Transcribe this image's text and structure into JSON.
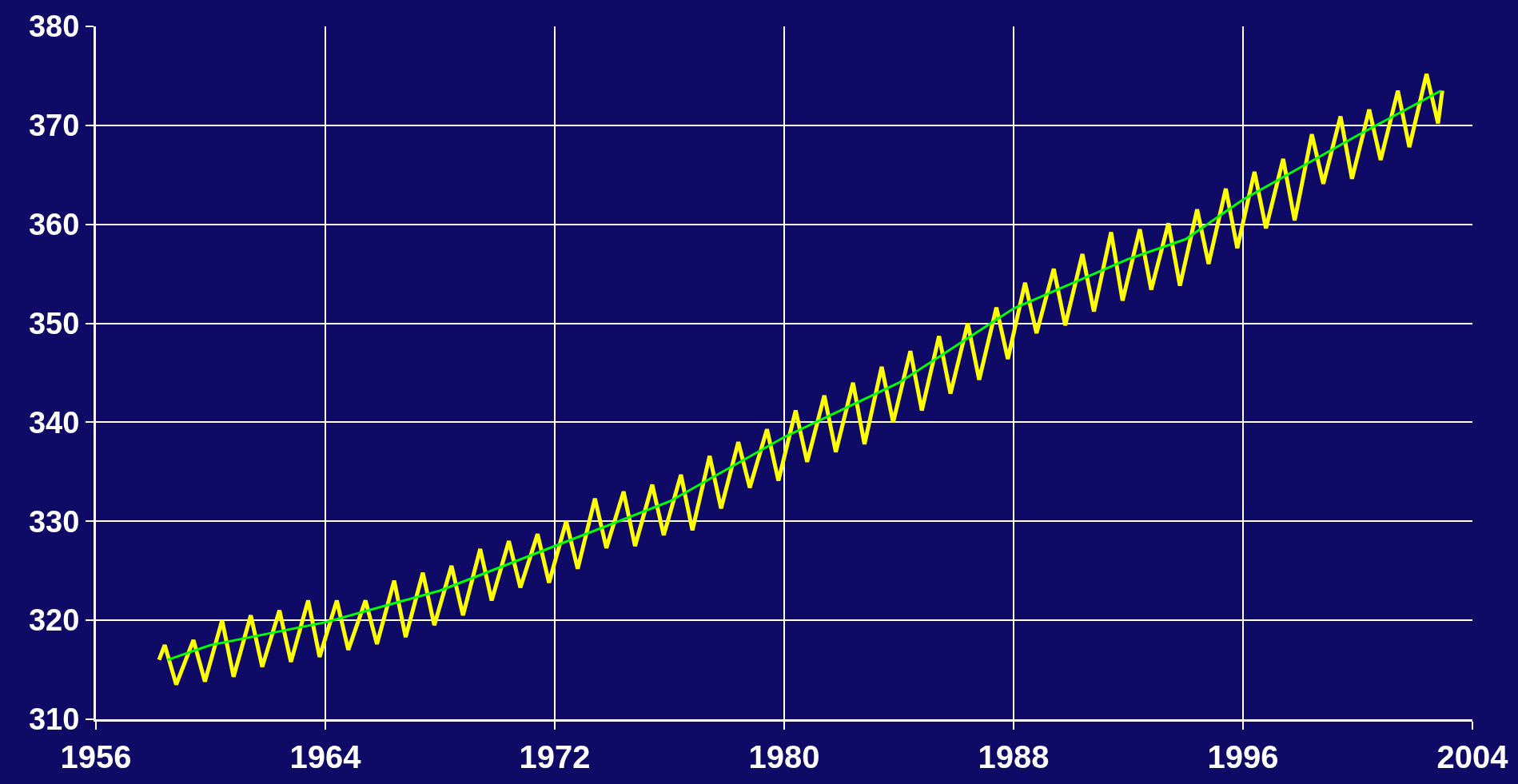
{
  "chart_data": {
    "type": "line",
    "xlim": [
      1956,
      2004
    ],
    "ylim": [
      310,
      380
    ],
    "xticks": [
      1956,
      1964,
      1972,
      1980,
      1988,
      1996,
      2004
    ],
    "yticks": [
      310,
      320,
      330,
      340,
      350,
      360,
      370,
      380
    ],
    "grid": true,
    "marker": "none",
    "line_style": "solid",
    "series": [
      {
        "color": "#ffff00",
        "x": [
          1958.2,
          1958.4,
          1958.8,
          1959.4,
          1959.8,
          1960.4,
          1960.8,
          1961.4,
          1961.8,
          1962.4,
          1962.8,
          1963.4,
          1963.8,
          1964.4,
          1964.8,
          1965.4,
          1965.8,
          1966.4,
          1966.8,
          1967.4,
          1967.8,
          1968.4,
          1968.8,
          1969.4,
          1969.8,
          1970.4,
          1970.8,
          1971.4,
          1971.8,
          1972.4,
          1972.8,
          1973.4,
          1973.8,
          1974.4,
          1974.8,
          1975.4,
          1975.8,
          1976.4,
          1976.8,
          1977.4,
          1977.8,
          1978.4,
          1978.8,
          1979.4,
          1979.8,
          1980.4,
          1980.8,
          1981.4,
          1981.8,
          1982.4,
          1982.8,
          1983.4,
          1983.8,
          1984.4,
          1984.8,
          1985.4,
          1985.8,
          1986.4,
          1986.8,
          1987.4,
          1987.8,
          1988.4,
          1988.8,
          1989.4,
          1989.8,
          1990.4,
          1990.8,
          1991.4,
          1991.8,
          1992.4,
          1992.8,
          1993.4,
          1993.8,
          1994.4,
          1994.8,
          1995.4,
          1995.8,
          1996.4,
          1996.8,
          1997.4,
          1997.8,
          1998.4,
          1998.8,
          1999.4,
          1999.8,
          2000.4,
          2000.8,
          2001.4,
          2001.8,
          2002.4,
          2002.8,
          2002.95
        ],
        "values": [
          316,
          317.5,
          313.5,
          318,
          313.8,
          320,
          314.3,
          320.5,
          315.3,
          321,
          315.8,
          322,
          316.3,
          322,
          317,
          322,
          317.6,
          324,
          318.3,
          324.8,
          319.5,
          325.5,
          320.5,
          327.2,
          322,
          328,
          323.3,
          328.7,
          323.8,
          330,
          325.2,
          332.3,
          327.3,
          333,
          327.5,
          333.7,
          328.6,
          334.7,
          329.1,
          336.6,
          331.3,
          338,
          333.4,
          339.3,
          334.1,
          341.2,
          336,
          342.7,
          337,
          344,
          337.8,
          345.6,
          340,
          347.2,
          341.2,
          348.7,
          342.9,
          350,
          344.3,
          351.6,
          346.4,
          354.1,
          349,
          355.5,
          349.8,
          357,
          351.2,
          359.2,
          352.3,
          359.5,
          353.4,
          360.1,
          353.8,
          361.5,
          356,
          363.6,
          357.6,
          365.3,
          359.6,
          366.6,
          360.4,
          369.1,
          364.1,
          370.9,
          364.6,
          371.6,
          366.5,
          373.5,
          367.8,
          375.2,
          370.2,
          373.5
        ]
      },
      {
        "color": "#00ff00",
        "x": [
          1958.5,
          1960,
          1964,
          1968,
          1972,
          1976,
          1980,
          1984,
          1988,
          1992,
          1994,
          1996,
          2000,
          2002.9
        ],
        "values": [
          316,
          317.5,
          319.8,
          323,
          327.5,
          332,
          338.5,
          344,
          351.5,
          356.5,
          358.5,
          362.5,
          369,
          373.5
        ]
      }
    ]
  }
}
